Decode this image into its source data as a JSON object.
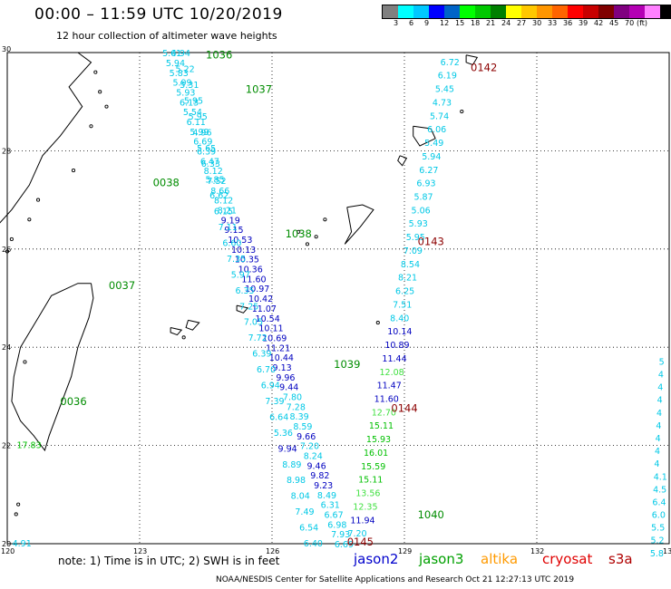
{
  "header": {
    "title": "00:00  –  11:59 UTC 10/20/2019",
    "subtitle": "12 hour collection of altimeter wave heights"
  },
  "color_scale": {
    "colors": [
      "#808080",
      "#00ffff",
      "#00c8ff",
      "#0000ff",
      "#0064c8",
      "#00ff00",
      "#00c800",
      "#008000",
      "#ffff00",
      "#ffc800",
      "#ff9600",
      "#ff6400",
      "#ff0000",
      "#c80000",
      "#800000",
      "#800080",
      "#b400b4",
      "#ff80ff",
      "#000000"
    ],
    "labels": [
      "3",
      "6",
      "9",
      "12",
      "15",
      "18",
      "21",
      "24",
      "27",
      "30",
      "33",
      "36",
      "39",
      "42",
      "45",
      "70",
      "(ft)"
    ]
  },
  "axes": {
    "lat_ticks": [
      "30",
      "28",
      "26",
      "24",
      "22",
      "20"
    ],
    "lon_ticks": [
      "120",
      "123",
      "126",
      "129",
      "132",
      "135"
    ]
  },
  "pass_ids": [
    {
      "id": "1036",
      "lon": 124.5,
      "lat": 29.88,
      "sat": "jason3"
    },
    {
      "id": "1037",
      "lon": 125.4,
      "lat": 29.18,
      "sat": "jason3"
    },
    {
      "id": "0038",
      "lon": 123.3,
      "lat": 27.28,
      "sat": "jason3"
    },
    {
      "id": "1038",
      "lon": 126.3,
      "lat": 26.24,
      "sat": "jason3"
    },
    {
      "id": "0037",
      "lon": 122.3,
      "lat": 25.18,
      "sat": "jason3"
    },
    {
      "id": "0036",
      "lon": 121.2,
      "lat": 22.82,
      "sat": "jason3"
    },
    {
      "id": "1039",
      "lon": 127.4,
      "lat": 23.58,
      "sat": "jason3"
    },
    {
      "id": "1040",
      "lon": 129.3,
      "lat": 20.52,
      "sat": "jason3"
    },
    {
      "id": "0142",
      "lon": 130.5,
      "lat": 29.62,
      "sat": "cryosat"
    },
    {
      "id": "0143",
      "lon": 129.3,
      "lat": 26.08,
      "sat": "cryosat"
    },
    {
      "id": "0144",
      "lon": 128.7,
      "lat": 22.68,
      "sat": "cryosat"
    },
    {
      "id": "0145",
      "lon": 127.7,
      "lat": 19.96,
      "sat": "cryosat"
    }
  ],
  "tracks": [
    {
      "name_ref": "track-a",
      "lat_start": 29.98,
      "lat_end": 19.98,
      "lon_start": 123.7,
      "lon_end": 127.6,
      "values": [
        "5.61",
        "5.94",
        "5.83",
        "5.99",
        "5.93",
        "6.13",
        "5.54",
        "6.11",
        "5.99",
        "6.69",
        "6.39",
        "6.47",
        "8.12",
        "7.52",
        "8.66",
        "8.12",
        "8.21",
        "9.19",
        "9.15",
        "10.53",
        "10.13",
        "10.35",
        "10.36",
        "11.60",
        "10.97",
        "10.42",
        "11.07",
        "10.54",
        "10.11",
        "10.69",
        "11.21",
        "10.44",
        "9.13",
        "9.96",
        "9.44",
        "7.80",
        "7.28",
        "8.39",
        "8.59",
        "9.66",
        "7.20",
        "8.24",
        "9.46",
        "9.82",
        "9.23",
        "8.49",
        "6.31",
        "6.67",
        "6.98",
        "7.93",
        "6.69"
      ]
    },
    {
      "name_ref": "track-b",
      "lat_start": 29.98,
      "lat_end": 20.0,
      "lon_start": 123.9,
      "lon_end": 126.9,
      "values": [
        "4.94",
        "5.22",
        "5.31",
        "5.95",
        "5.95",
        "4.96",
        "5.65",
        "6.33",
        "5.85",
        "6.62",
        "6.15",
        "7.11",
        "6.60",
        "7.35",
        "5.97",
        "6.35",
        "7.25",
        "7.05",
        "7.72",
        "6.39",
        "6.70",
        "6.94",
        "7.39",
        "6.64",
        "5.36",
        "9.94",
        "8.89",
        "8.98",
        "8.04",
        "7.49",
        "6.54",
        "6.40"
      ]
    },
    {
      "name_ref": "track-c",
      "lat_start": 29.8,
      "lat_end": 20.2,
      "lon_start": 130.0,
      "lon_end": 127.9,
      "values": [
        "6.72",
        "6.19",
        "5.45",
        "4.73",
        "5.74",
        "6.06",
        "5.49",
        "5.94",
        "6.27",
        "6.93",
        "5.87",
        "5.06",
        "5.93",
        "5.95",
        "7.09",
        "8.54",
        "8.21",
        "6.25",
        "7.51",
        "8.40",
        "10.14",
        "10.89",
        "11.44",
        "12.08",
        "11.47",
        "11.60",
        "12.70",
        "15.11",
        "15.93",
        "16.01",
        "15.59",
        "15.11",
        "13.56",
        "12.35",
        "11.94",
        "7.20"
      ]
    },
    {
      "name_ref": "track-d",
      "lat_start": 22.0,
      "lat_end": 20.0,
      "lon_start": 120.4,
      "lon_end": 120.3,
      "values": [
        "17.83",
        "4.91"
      ]
    },
    {
      "name_ref": "track-e",
      "lat_start": 23.7,
      "lat_end": 19.8,
      "lon_start": 134.95,
      "lon_end": 134.75,
      "values": [
        "5",
        "4",
        "4",
        "4",
        "4",
        "4",
        "4",
        "4",
        "4",
        "4.1",
        "4.5",
        "6.4",
        "6.0",
        "5.5",
        "5.2",
        "5.8"
      ]
    }
  ],
  "note": "note:  1) Time is in UTC;  2) SWH is in feet",
  "satellites": [
    {
      "label": "jason2",
      "color": "#0000cc"
    },
    {
      "label": "jason3",
      "color": "#00a000"
    },
    {
      "label": "altika",
      "color": "#ff9a00"
    },
    {
      "label": "cryosat",
      "color": "#e00000"
    },
    {
      "label": "s3a",
      "color": "#b00000"
    }
  ],
  "credit": "NOAA/NESDIS Center for Satellite Applications and Research     Oct 21 12:27:13 UTC 2019"
}
